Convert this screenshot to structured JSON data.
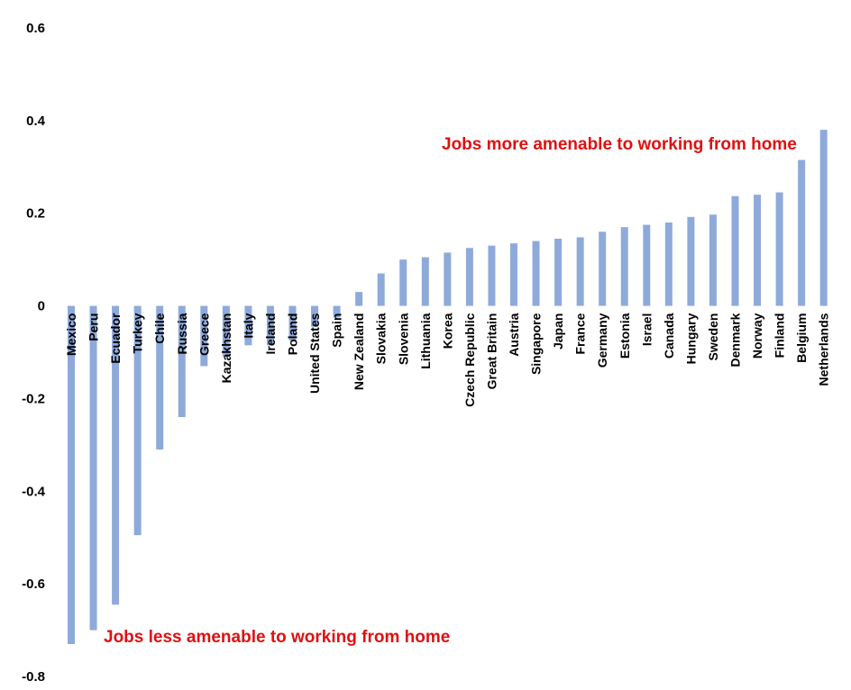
{
  "chart_data": {
    "type": "bar",
    "title": "",
    "xlabel": "",
    "ylabel": "",
    "ylim": [
      -0.8,
      0.6
    ],
    "yticks": [
      "0.6",
      "0.4",
      "0.2",
      "0",
      "-0.2",
      "-0.4",
      "-0.6",
      "-0.8"
    ],
    "ytick_values": [
      0.6,
      0.4,
      0.2,
      0,
      -0.2,
      -0.4,
      -0.6,
      -0.8
    ],
    "grid": false,
    "bar_color": "#8eaadb",
    "annotation_color": "#e01010",
    "categories": [
      "Mexico",
      "Peru",
      "Ecuador",
      "Turkey",
      "Chile",
      "Russia",
      "Greece",
      "Kazakhstan",
      "Italy",
      "Ireland",
      "Poland",
      "United States",
      "Spain",
      "New Zealand",
      "Slovakia",
      "Slovenia",
      "Lithuania",
      "Korea",
      "Czech Republic",
      "Great Britain",
      "Austria",
      "Singapore",
      "Japan",
      "France",
      "Germany",
      "Estonia",
      "Israel",
      "Canada",
      "Hungary",
      "Sweden",
      "Denmark",
      "Norway",
      "Finland",
      "Belgium",
      "Netherlands"
    ],
    "values": [
      -0.73,
      -0.7,
      -0.645,
      -0.495,
      -0.31,
      -0.24,
      -0.13,
      -0.11,
      -0.085,
      -0.085,
      -0.075,
      -0.045,
      -0.025,
      0.03,
      0.07,
      0.1,
      0.105,
      0.115,
      0.125,
      0.13,
      0.135,
      0.14,
      0.145,
      0.148,
      0.16,
      0.17,
      0.175,
      0.18,
      0.192,
      0.197,
      0.237,
      0.24,
      0.245,
      0.315,
      0.38
    ],
    "annotations": [
      {
        "text": "Jobs more amenable to working from home"
      },
      {
        "text": "Jobs less amenable to working from home"
      }
    ]
  }
}
